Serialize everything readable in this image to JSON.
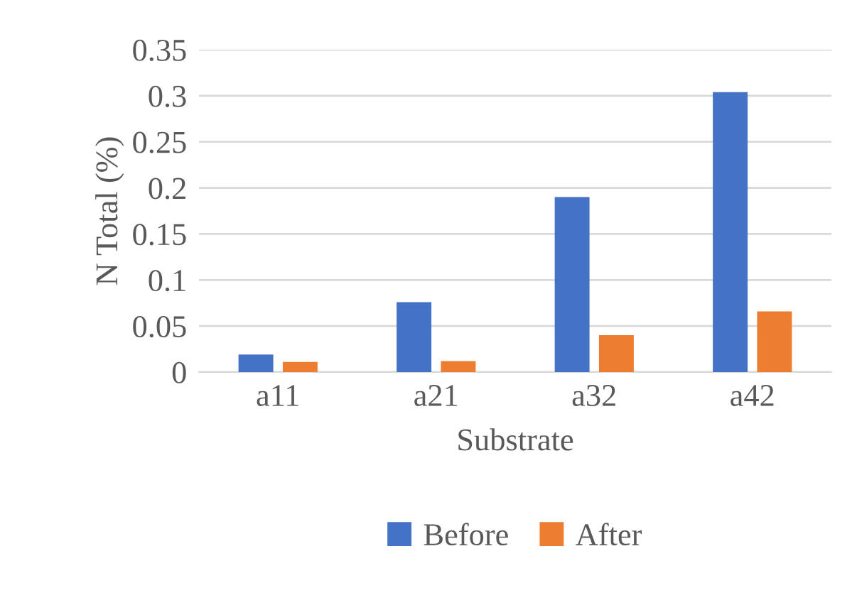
{
  "chart_data": {
    "type": "bar",
    "xlabel": "Substrate",
    "ylabel": "N Total (%)",
    "categories": [
      "a11",
      "a21",
      "a32",
      "a42"
    ],
    "series": [
      {
        "name": "Before",
        "color": "#4472c4",
        "values": [
          0.019,
          0.076,
          0.19,
          0.304
        ]
      },
      {
        "name": "After",
        "color": "#ed7d31",
        "values": [
          0.011,
          0.012,
          0.04,
          0.066
        ]
      }
    ],
    "ylim": [
      0,
      0.35
    ],
    "yticks": [
      0,
      0.05,
      0.1,
      0.15,
      0.2,
      0.25,
      0.3,
      0.35
    ],
    "grid": "y",
    "legend": "bottom"
  }
}
